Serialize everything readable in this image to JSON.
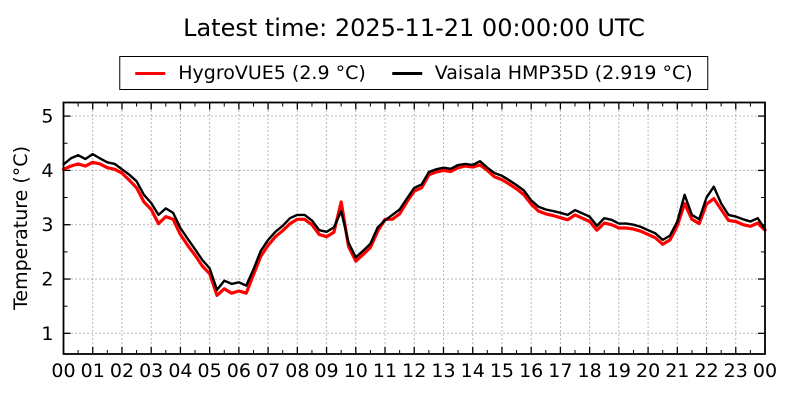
{
  "header": {
    "title": "Latest time: 2025-11-21 00:00:00 UTC"
  },
  "legend": {
    "entries": [
      {
        "label": "HygroVUE5 (2.9 °C)",
        "color": "#ff0000"
      },
      {
        "label": "Vaisala HMP35D (2.919 °C)",
        "color": "#000000"
      }
    ]
  },
  "chart_data": {
    "type": "line",
    "title": "Latest time: 2025-11-21 00:00:00 UTC",
    "xlabel": "",
    "ylabel": "Temperature (°C)",
    "xlim": [
      0,
      24
    ],
    "ylim": [
      0.62,
      5.25
    ],
    "yticks": [
      1,
      2,
      3,
      4,
      5
    ],
    "x_tick_labels": [
      "00",
      "01",
      "02",
      "03",
      "04",
      "05",
      "06",
      "07",
      "08",
      "09",
      "10",
      "11",
      "12",
      "13",
      "14",
      "15",
      "16",
      "17",
      "18",
      "19",
      "20",
      "21",
      "22",
      "23",
      "00"
    ],
    "grid": true,
    "grid_style": "dotted",
    "legend_position": "top center, horizontal, framed",
    "latest_values": {
      "HygroVUE5": 2.9,
      "Vaisala HMP35D": 2.919,
      "unit": "°C"
    },
    "x_unit": "hour of day (UTC)",
    "x": [
      0,
      0.25,
      0.5,
      0.75,
      1,
      1.25,
      1.5,
      1.75,
      2,
      2.25,
      2.5,
      2.75,
      3,
      3.25,
      3.5,
      3.75,
      4,
      4.25,
      4.5,
      4.75,
      5,
      5.25,
      5.5,
      5.75,
      6,
      6.25,
      6.5,
      6.75,
      7,
      7.25,
      7.5,
      7.75,
      8,
      8.25,
      8.5,
      8.75,
      9,
      9.25,
      9.5,
      9.75,
      10,
      10.25,
      10.5,
      10.75,
      11,
      11.25,
      11.5,
      11.75,
      12,
      12.25,
      12.5,
      12.75,
      13,
      13.25,
      13.5,
      13.75,
      14,
      14.25,
      14.5,
      14.75,
      15,
      15.25,
      15.5,
      15.75,
      16,
      16.25,
      16.5,
      16.75,
      17,
      17.25,
      17.5,
      17.75,
      18,
      18.25,
      18.5,
      18.75,
      19,
      19.25,
      19.5,
      19.75,
      20,
      20.25,
      20.5,
      20.75,
      21,
      21.25,
      21.5,
      21.75,
      22,
      22.25,
      22.5,
      22.75,
      23,
      23.25,
      23.5,
      23.75,
      24
    ],
    "series": [
      {
        "name": "HygroVUE5 (2.9 °C)",
        "color": "#ff0000",
        "linewidth": 3.2,
        "values": [
          4.02,
          4.08,
          4.12,
          4.08,
          4.15,
          4.12,
          4.05,
          4.02,
          3.95,
          3.82,
          3.68,
          3.42,
          3.28,
          3.02,
          3.15,
          3.1,
          2.82,
          2.62,
          2.44,
          2.24,
          2.1,
          1.7,
          1.82,
          1.74,
          1.78,
          1.74,
          2.08,
          2.42,
          2.62,
          2.78,
          2.89,
          3.02,
          3.1,
          3.1,
          3.0,
          2.82,
          2.78,
          2.86,
          3.42,
          2.6,
          2.33,
          2.45,
          2.58,
          2.88,
          3.1,
          3.1,
          3.2,
          3.42,
          3.62,
          3.68,
          3.92,
          3.97,
          4.0,
          3.98,
          4.05,
          4.08,
          4.06,
          4.1,
          4.0,
          3.88,
          3.83,
          3.75,
          3.66,
          3.55,
          3.38,
          3.25,
          3.2,
          3.17,
          3.13,
          3.09,
          3.18,
          3.12,
          3.06,
          2.9,
          3.03,
          3.0,
          2.94,
          2.94,
          2.92,
          2.88,
          2.82,
          2.76,
          2.64,
          2.72,
          2.98,
          3.39,
          3.1,
          3.02,
          3.38,
          3.48,
          3.28,
          3.08,
          3.06,
          3.0,
          2.97,
          3.03,
          2.9
        ]
      },
      {
        "name": "Vaisala HMP35D (2.919 °C)",
        "color": "#000000",
        "linewidth": 2.4,
        "values": [
          4.11,
          4.22,
          4.28,
          4.21,
          4.3,
          4.22,
          4.15,
          4.12,
          4.02,
          3.92,
          3.8,
          3.55,
          3.4,
          3.18,
          3.3,
          3.22,
          2.94,
          2.74,
          2.55,
          2.35,
          2.2,
          1.8,
          1.97,
          1.91,
          1.94,
          1.88,
          2.18,
          2.52,
          2.72,
          2.87,
          2.98,
          3.12,
          3.18,
          3.18,
          3.08,
          2.9,
          2.87,
          2.95,
          3.25,
          2.67,
          2.4,
          2.52,
          2.65,
          2.95,
          3.08,
          3.18,
          3.28,
          3.48,
          3.68,
          3.74,
          3.97,
          4.02,
          4.05,
          4.03,
          4.1,
          4.12,
          4.1,
          4.17,
          4.05,
          3.95,
          3.9,
          3.82,
          3.73,
          3.63,
          3.45,
          3.33,
          3.28,
          3.25,
          3.22,
          3.18,
          3.27,
          3.21,
          3.15,
          2.98,
          3.12,
          3.09,
          3.02,
          3.02,
          3.0,
          2.96,
          2.9,
          2.84,
          2.72,
          2.8,
          3.06,
          3.55,
          3.18,
          3.1,
          3.5,
          3.7,
          3.39,
          3.18,
          3.15,
          3.1,
          3.06,
          3.12,
          2.92
        ]
      }
    ]
  }
}
